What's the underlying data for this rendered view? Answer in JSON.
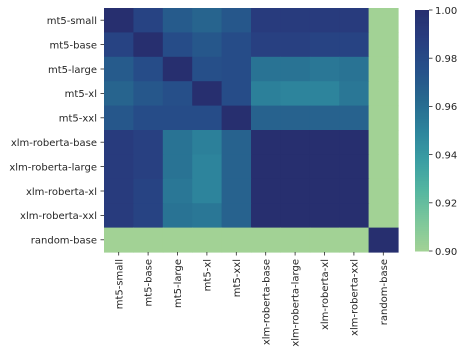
{
  "chart_data": {
    "type": "heatmap",
    "title": "",
    "xlabel": "",
    "ylabel": "",
    "labels": [
      "mt5-small",
      "mt5-base",
      "mt5-large",
      "mt5-xl",
      "mt5-xxl",
      "xlm-roberta-base",
      "xlm-roberta-large",
      "xlm-roberta-xl",
      "xlm-roberta-xxl",
      "random-base"
    ],
    "values": [
      [
        1.0,
        0.984,
        0.97,
        0.965,
        0.972,
        0.99,
        0.99,
        0.99,
        0.99,
        0.9
      ],
      [
        0.984,
        1.0,
        0.978,
        0.972,
        0.978,
        0.986,
        0.986,
        0.984,
        0.984,
        0.9
      ],
      [
        0.97,
        0.978,
        1.0,
        0.976,
        0.978,
        0.958,
        0.958,
        0.956,
        0.958,
        0.9
      ],
      [
        0.965,
        0.972,
        0.976,
        1.0,
        0.978,
        0.952,
        0.95,
        0.95,
        0.956,
        0.9
      ],
      [
        0.972,
        0.978,
        0.978,
        0.978,
        1.0,
        0.966,
        0.966,
        0.966,
        0.966,
        0.9
      ],
      [
        0.99,
        0.986,
        0.958,
        0.952,
        0.966,
        1.0,
        1.0,
        1.0,
        1.0,
        0.9
      ],
      [
        0.99,
        0.986,
        0.958,
        0.95,
        0.966,
        1.0,
        1.0,
        1.0,
        1.0,
        0.9
      ],
      [
        0.99,
        0.984,
        0.956,
        0.95,
        0.966,
        1.0,
        1.0,
        1.0,
        1.0,
        0.9
      ],
      [
        0.99,
        0.984,
        0.958,
        0.956,
        0.966,
        1.0,
        1.0,
        1.0,
        1.0,
        0.9
      ],
      [
        0.9,
        0.9,
        0.9,
        0.9,
        0.9,
        0.9,
        0.9,
        0.9,
        0.9,
        1.0
      ]
    ],
    "colorbar": {
      "min": 0.9,
      "max": 1.0,
      "ticks": [
        "0.90",
        "0.92",
        "0.94",
        "0.96",
        "0.98",
        "1.00"
      ]
    },
    "colormap": [
      "#a2d295",
      "#7cc79b",
      "#55b6a0",
      "#3a9ea3",
      "#2d849c",
      "#27698f",
      "#26518a",
      "#283e80",
      "#272f6f"
    ]
  }
}
